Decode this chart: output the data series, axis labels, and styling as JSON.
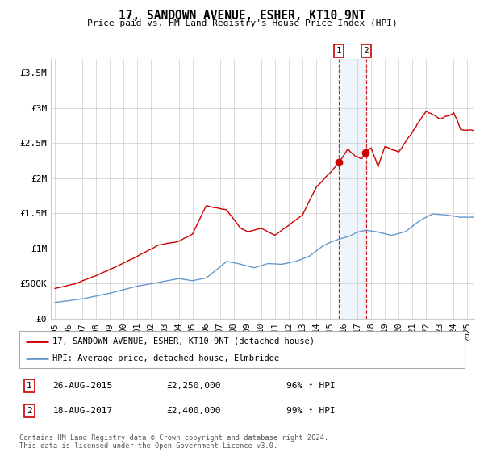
{
  "title": "17, SANDOWN AVENUE, ESHER, KT10 9NT",
  "subtitle": "Price paid vs. HM Land Registry's House Price Index (HPI)",
  "legend_line1": "17, SANDOWN AVENUE, ESHER, KT10 9NT (detached house)",
  "legend_line2": "HPI: Average price, detached house, Elmbridge",
  "footer": "Contains HM Land Registry data © Crown copyright and database right 2024.\nThis data is licensed under the Open Government Licence v3.0.",
  "sale1_label": "1",
  "sale1_date": "26-AUG-2015",
  "sale1_price": "£2,250,000",
  "sale1_hpi": "96% ↑ HPI",
  "sale1_year": 2015.65,
  "sale1_value": 2250000,
  "sale2_label": "2",
  "sale2_date": "18-AUG-2017",
  "sale2_price": "£2,400,000",
  "sale2_hpi": "99% ↑ HPI",
  "sale2_year": 2017.62,
  "sale2_value": 2400000,
  "red_color": "#cc0000",
  "blue_color": "#6699cc",
  "highlight_color": "#ddeeff",
  "grid_color": "#cccccc",
  "xstart": 1994.7,
  "xend": 2025.5,
  "ymin": 0,
  "ymax": 3700000,
  "yticks": [
    0,
    500000,
    1000000,
    1500000,
    2000000,
    2500000,
    3000000,
    3500000
  ],
  "ylabels": [
    "£0",
    "£500K",
    "£1M",
    "£1.5M",
    "£2M",
    "£2.5M",
    "£3M",
    "£3.5M"
  ]
}
